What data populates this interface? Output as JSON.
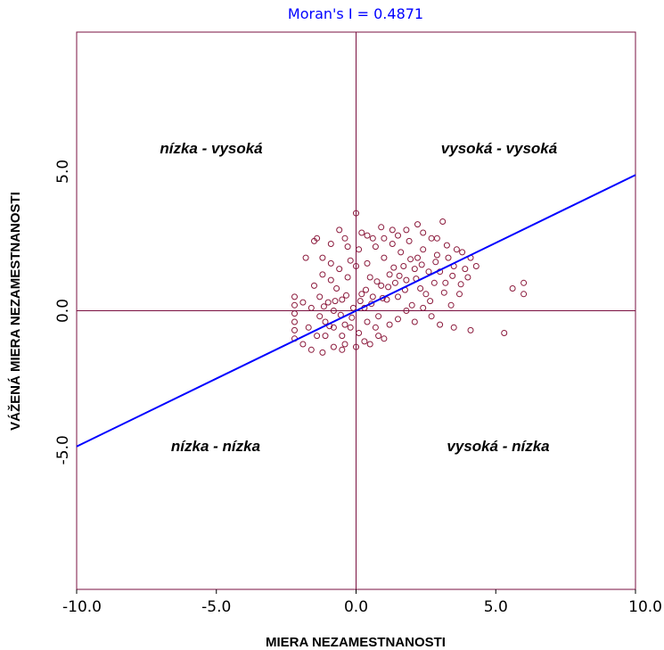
{
  "colors": {
    "frame": "#7a1040",
    "points": "#8b1a3c",
    "regression": "#0000ff",
    "subtitle": "#0000ff"
  },
  "chart_data": {
    "type": "scatter",
    "title": "",
    "subtitle": "Moran's I = 0.4871",
    "xlabel": "MIERA NEZAMESTNANOSTI",
    "ylabel": "VÁŽENÁ MIERA NEZAMESTNANOSTI",
    "xlim": [
      -10,
      10
    ],
    "ylim": [
      -10,
      10
    ],
    "xticks": [
      -10,
      -5,
      0,
      5,
      10
    ],
    "xtick_labels": [
      "-10.0",
      "-5.0",
      "0.0",
      "5.0",
      "10.0"
    ],
    "yticks": [
      -5,
      0,
      5
    ],
    "ytick_labels": [
      "-5.0",
      "0.0",
      "5.0"
    ],
    "reference_lines": {
      "x": 0,
      "y": 0
    },
    "regression_line": {
      "slope": 0.4871,
      "intercept": 0
    },
    "quadrant_labels": {
      "top_left": "nízka - vysoká",
      "top_right": "vysoká - vysoká",
      "bottom_left": "nízka - nízka",
      "bottom_right": "vysoká - nízka"
    },
    "series": [
      {
        "points": [
          [
            -2.2,
            0.5
          ],
          [
            -2.2,
            0.2
          ],
          [
            -2.2,
            -0.1
          ],
          [
            -2.2,
            -0.4
          ],
          [
            -2.2,
            -0.7
          ],
          [
            -2.2,
            -1.0
          ],
          [
            -1.8,
            1.9
          ],
          [
            -1.5,
            2.5
          ],
          [
            -1.4,
            2.6
          ],
          [
            -1.2,
            1.9
          ],
          [
            -0.9,
            2.4
          ],
          [
            -0.6,
            2.9
          ],
          [
            -0.3,
            2.3
          ],
          [
            0.0,
            3.5
          ],
          [
            0.4,
            2.7
          ],
          [
            0.9,
            3.0
          ],
          [
            1.3,
            2.9
          ],
          [
            1.8,
            2.9
          ],
          [
            2.2,
            3.1
          ],
          [
            2.4,
            2.8
          ],
          [
            3.1,
            3.2
          ],
          [
            2.9,
            2.6
          ],
          [
            4.1,
            1.9
          ],
          [
            4.3,
            1.6
          ],
          [
            4.0,
            1.2
          ],
          [
            3.7,
            0.6
          ],
          [
            3.4,
            0.2
          ],
          [
            3.0,
            -0.5
          ],
          [
            3.5,
            -0.6
          ],
          [
            4.1,
            -0.7
          ],
          [
            5.3,
            -0.8
          ],
          [
            6.0,
            1.0
          ],
          [
            6.0,
            0.6
          ],
          [
            5.6,
            0.8
          ],
          [
            -1.6,
            -1.4
          ],
          [
            -1.2,
            -1.5
          ],
          [
            -0.8,
            -1.3
          ],
          [
            -0.4,
            -1.2
          ],
          [
            0.3,
            -1.1
          ],
          [
            0.8,
            -0.9
          ],
          [
            -1.7,
            -0.6
          ],
          [
            -1.3,
            -0.2
          ],
          [
            -1.0,
            0.3
          ],
          [
            -0.7,
            0.8
          ],
          [
            -0.4,
            -0.5
          ],
          [
            -0.1,
            0.1
          ],
          [
            0.2,
            0.6
          ],
          [
            0.5,
            1.2
          ],
          [
            0.8,
            -0.2
          ],
          [
            1.1,
            0.4
          ],
          [
            1.4,
            1.0
          ],
          [
            1.7,
            1.6
          ],
          [
            2.0,
            0.2
          ],
          [
            2.3,
            0.8
          ],
          [
            2.6,
            1.4
          ],
          [
            2.9,
            2.0
          ],
          [
            3.2,
            1.0
          ],
          [
            3.5,
            1.6
          ],
          [
            3.8,
            2.1
          ],
          [
            -0.2,
            1.8
          ],
          [
            0.1,
            2.2
          ],
          [
            0.4,
            1.7
          ],
          [
            0.7,
            2.3
          ],
          [
            1.0,
            1.9
          ],
          [
            1.3,
            2.4
          ],
          [
            1.6,
            2.1
          ],
          [
            1.9,
            2.5
          ],
          [
            2.2,
            1.9
          ],
          [
            -1.1,
            -0.9
          ],
          [
            -0.8,
            -0.6
          ],
          [
            -0.5,
            -0.9
          ],
          [
            -0.2,
            -0.6
          ],
          [
            0.1,
            -0.8
          ],
          [
            0.4,
            -0.4
          ],
          [
            0.7,
            -0.6
          ],
          [
            -1.5,
            0.9
          ],
          [
            -1.2,
            1.3
          ],
          [
            -0.9,
            1.1
          ],
          [
            -0.6,
            1.5
          ],
          [
            -0.3,
            1.2
          ],
          [
            0.0,
            1.6
          ],
          [
            1.2,
            -0.5
          ],
          [
            1.5,
            -0.3
          ],
          [
            1.8,
            0.0
          ],
          [
            2.1,
            -0.4
          ],
          [
            2.4,
            0.1
          ],
          [
            2.7,
            -0.2
          ],
          [
            0.3,
            0.1
          ],
          [
            0.6,
            0.5
          ],
          [
            0.9,
            0.9
          ],
          [
            1.2,
            1.3
          ],
          [
            1.5,
            0.5
          ],
          [
            1.8,
            1.1
          ],
          [
            2.1,
            1.5
          ],
          [
            2.4,
            2.2
          ],
          [
            -0.5,
            0.4
          ],
          [
            -0.8,
            0.0
          ],
          [
            -1.1,
            -0.4
          ],
          [
            -1.4,
            -0.9
          ],
          [
            -1.9,
            -1.2
          ],
          [
            -1.9,
            0.3
          ],
          [
            3.3,
            1.9
          ],
          [
            3.6,
            2.2
          ],
          [
            3.9,
            1.5
          ],
          [
            3.0,
            1.4
          ],
          [
            2.7,
            2.6
          ],
          [
            2.5,
            0.6
          ],
          [
            2.8,
            1.0
          ],
          [
            0.2,
            2.8
          ],
          [
            0.6,
            2.6
          ],
          [
            1.0,
            2.6
          ],
          [
            1.5,
            2.7
          ],
          [
            -0.4,
            2.6
          ],
          [
            -0.9,
            1.7
          ],
          [
            0.0,
            -1.3
          ],
          [
            0.5,
            -1.2
          ],
          [
            -0.5,
            -1.4
          ],
          [
            1.0,
            -1.0
          ],
          [
            -1.3,
            0.5
          ],
          [
            -1.6,
            0.1
          ],
          [
            0.15,
            0.35
          ],
          [
            0.35,
            0.75
          ],
          [
            0.55,
            0.25
          ],
          [
            0.75,
            1.05
          ],
          [
            0.95,
            0.45
          ],
          [
            1.15,
            0.85
          ],
          [
            1.35,
            1.55
          ],
          [
            1.55,
            1.25
          ],
          [
            1.75,
            0.75
          ],
          [
            1.95,
            1.85
          ],
          [
            2.15,
            1.15
          ],
          [
            2.35,
            1.65
          ],
          [
            -0.15,
            -0.25
          ],
          [
            -0.35,
            0.55
          ],
          [
            -0.55,
            -0.15
          ],
          [
            -0.75,
            0.35
          ],
          [
            -0.95,
            -0.55
          ],
          [
            -1.15,
            0.15
          ],
          [
            3.15,
            0.65
          ],
          [
            3.45,
            1.25
          ],
          [
            3.75,
            0.95
          ],
          [
            2.65,
            0.35
          ],
          [
            2.85,
            1.75
          ],
          [
            3.25,
            2.35
          ]
        ]
      }
    ]
  }
}
